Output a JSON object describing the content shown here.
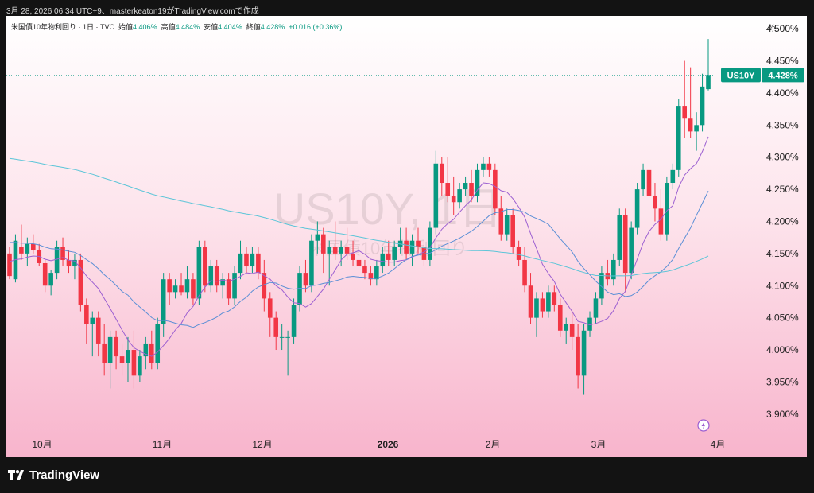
{
  "caption": "3月 28, 2026 06:34 UTC+9、masterkeaton19がTradingView.comで作成",
  "legend": {
    "name": "米国債10年物利回り · 1日 · TVC",
    "open_label": "始値",
    "open": "4.406%",
    "high_label": "高値",
    "high": "4.484%",
    "low_label": "安値",
    "low": "4.404%",
    "close_label": "終値",
    "close": "4.428%",
    "change": "+0.016 (+0.36%)"
  },
  "percent_unit": "%",
  "watermark": {
    "symbol": "US10Y, 1日",
    "name": "米国債10年物利回り"
  },
  "price_tag": {
    "symbol": "US10Y",
    "value": "4.428%"
  },
  "brand": "TradingView",
  "colors": {
    "up": "#089981",
    "down": "#f23645",
    "ma_fast": "#9c5fd1",
    "ma_mid": "#5b8fd6",
    "ma_slow": "#5cc5d8"
  },
  "chart_data": {
    "type": "candlestick",
    "y_ticks": [
      "4.500%",
      "4.450%",
      "4.400%",
      "4.350%",
      "4.300%",
      "4.250%",
      "4.200%",
      "4.150%",
      "4.100%",
      "4.050%",
      "4.000%",
      "3.950%",
      "3.900%"
    ],
    "ylim": [
      3.875,
      4.52
    ],
    "x_ticks": [
      "10月",
      "11月",
      "12月",
      "2026",
      "2月",
      "3月",
      "4月"
    ],
    "candles": [
      [
        4.15,
        4.16,
        4.11,
        4.115
      ],
      [
        4.11,
        4.18,
        4.105,
        4.17
      ],
      [
        4.16,
        4.195,
        4.14,
        4.15
      ],
      [
        4.15,
        4.175,
        4.13,
        4.165
      ],
      [
        4.165,
        4.18,
        4.15,
        4.155
      ],
      [
        4.155,
        4.165,
        4.13,
        4.135
      ],
      [
        4.135,
        4.14,
        4.09,
        4.1
      ],
      [
        4.1,
        4.125,
        4.085,
        4.12
      ],
      [
        4.12,
        4.17,
        4.11,
        4.16
      ],
      [
        4.16,
        4.175,
        4.13,
        4.14
      ],
      [
        4.14,
        4.155,
        4.12,
        4.13
      ],
      [
        4.13,
        4.15,
        4.11,
        4.14
      ],
      [
        4.14,
        4.15,
        4.06,
        4.07
      ],
      [
        4.07,
        4.08,
        4.01,
        4.04
      ],
      [
        4.04,
        4.06,
        3.99,
        4.05
      ],
      [
        4.05,
        4.06,
        3.99,
        4.01
      ],
      [
        4.01,
        4.04,
        3.96,
        3.98
      ],
      [
        3.98,
        4.03,
        3.94,
        4.02
      ],
      [
        4.02,
        4.03,
        3.97,
        3.99
      ],
      [
        3.99,
        4.01,
        3.96,
        3.98
      ],
      [
        3.98,
        4.02,
        3.95,
        4.0
      ],
      [
        4.0,
        4.03,
        3.94,
        3.96
      ],
      [
        3.96,
        4.0,
        3.95,
        3.99
      ],
      [
        3.99,
        4.02,
        3.97,
        4.01
      ],
      [
        4.01,
        4.03,
        3.97,
        3.98
      ],
      [
        3.98,
        4.05,
        3.97,
        4.04
      ],
      [
        4.04,
        4.12,
        4.02,
        4.11
      ],
      [
        4.11,
        4.12,
        4.07,
        4.09
      ],
      [
        4.09,
        4.11,
        4.08,
        4.1
      ],
      [
        4.1,
        4.12,
        4.085,
        4.09
      ],
      [
        4.09,
        4.13,
        4.08,
        4.11
      ],
      [
        4.11,
        4.12,
        4.07,
        4.08
      ],
      [
        4.08,
        4.17,
        4.07,
        4.16
      ],
      [
        4.16,
        4.17,
        4.09,
        4.1
      ],
      [
        4.1,
        4.14,
        4.09,
        4.13
      ],
      [
        4.13,
        4.14,
        4.09,
        4.1
      ],
      [
        4.1,
        4.12,
        4.08,
        4.11
      ],
      [
        4.11,
        4.12,
        4.07,
        4.08
      ],
      [
        4.08,
        4.13,
        4.07,
        4.12
      ],
      [
        4.12,
        4.17,
        4.11,
        4.15
      ],
      [
        4.15,
        4.16,
        4.12,
        4.13
      ],
      [
        4.13,
        4.16,
        4.12,
        4.15
      ],
      [
        4.15,
        4.16,
        4.11,
        4.12
      ],
      [
        4.12,
        4.14,
        4.06,
        4.08
      ],
      [
        4.08,
        4.09,
        4.02,
        4.05
      ],
      [
        4.05,
        4.06,
        4.0,
        4.02
      ],
      [
        4.02,
        4.04,
        4.0,
        4.02
      ],
      [
        4.02,
        4.03,
        3.96,
        4.02
      ],
      [
        4.02,
        4.08,
        4.01,
        4.07
      ],
      [
        4.07,
        4.13,
        4.06,
        4.12
      ],
      [
        4.12,
        4.14,
        4.09,
        4.1
      ],
      [
        4.1,
        4.18,
        4.09,
        4.17
      ],
      [
        4.17,
        4.2,
        4.15,
        4.18
      ],
      [
        4.18,
        4.19,
        4.12,
        4.15
      ],
      [
        4.15,
        4.17,
        4.1,
        4.16
      ],
      [
        4.16,
        4.2,
        4.14,
        4.15
      ],
      [
        4.15,
        4.17,
        4.13,
        4.16
      ],
      [
        4.16,
        4.19,
        4.14,
        4.15
      ],
      [
        4.15,
        4.17,
        4.13,
        4.14
      ],
      [
        4.14,
        4.16,
        4.12,
        4.13
      ],
      [
        4.13,
        4.14,
        4.11,
        4.12
      ],
      [
        4.12,
        4.13,
        4.1,
        4.11
      ],
      [
        4.11,
        4.14,
        4.1,
        4.13
      ],
      [
        4.13,
        4.16,
        4.12,
        4.15
      ],
      [
        4.15,
        4.17,
        4.13,
        4.14
      ],
      [
        4.14,
        4.17,
        4.13,
        4.16
      ],
      [
        4.16,
        4.19,
        4.15,
        4.17
      ],
      [
        4.17,
        4.19,
        4.14,
        4.15
      ],
      [
        4.15,
        4.18,
        4.13,
        4.17
      ],
      [
        4.17,
        4.19,
        4.15,
        4.16
      ],
      [
        4.16,
        4.17,
        4.13,
        4.14
      ],
      [
        4.14,
        4.2,
        4.13,
        4.19
      ],
      [
        4.19,
        4.31,
        4.18,
        4.29
      ],
      [
        4.29,
        4.3,
        4.24,
        4.26
      ],
      [
        4.26,
        4.3,
        4.23,
        4.24
      ],
      [
        4.24,
        4.27,
        4.21,
        4.23
      ],
      [
        4.23,
        4.26,
        4.22,
        4.25
      ],
      [
        4.25,
        4.27,
        4.24,
        4.26
      ],
      [
        4.26,
        4.28,
        4.23,
        4.24
      ],
      [
        4.24,
        4.29,
        4.23,
        4.28
      ],
      [
        4.28,
        4.3,
        4.27,
        4.29
      ],
      [
        4.29,
        4.3,
        4.27,
        4.28
      ],
      [
        4.28,
        4.29,
        4.21,
        4.22
      ],
      [
        4.22,
        4.24,
        4.17,
        4.18
      ],
      [
        4.18,
        4.22,
        4.17,
        4.21
      ],
      [
        4.21,
        4.22,
        4.15,
        4.16
      ],
      [
        4.16,
        4.17,
        4.13,
        4.14
      ],
      [
        4.14,
        4.16,
        4.09,
        4.1
      ],
      [
        4.1,
        4.12,
        4.04,
        4.05
      ],
      [
        4.05,
        4.09,
        4.02,
        4.08
      ],
      [
        4.08,
        4.09,
        4.05,
        4.06
      ],
      [
        4.06,
        4.1,
        4.05,
        4.09
      ],
      [
        4.09,
        4.1,
        4.06,
        4.07
      ],
      [
        4.07,
        4.08,
        4.02,
        4.03
      ],
      [
        4.03,
        4.05,
        4.01,
        4.04
      ],
      [
        4.04,
        4.06,
        4.0,
        4.02
      ],
      [
        4.02,
        4.04,
        3.94,
        3.96
      ],
      [
        3.96,
        4.04,
        3.93,
        4.03
      ],
      [
        4.03,
        4.06,
        4.02,
        4.05
      ],
      [
        4.05,
        4.09,
        4.04,
        4.08
      ],
      [
        4.08,
        4.13,
        4.07,
        4.12
      ],
      [
        4.12,
        4.14,
        4.1,
        4.11
      ],
      [
        4.11,
        4.15,
        4.1,
        4.14
      ],
      [
        4.14,
        4.22,
        4.13,
        4.21
      ],
      [
        4.21,
        4.22,
        4.09,
        4.12
      ],
      [
        4.12,
        4.2,
        4.11,
        4.19
      ],
      [
        4.19,
        4.26,
        4.18,
        4.25
      ],
      [
        4.25,
        4.29,
        4.24,
        4.28
      ],
      [
        4.28,
        4.29,
        4.23,
        4.24
      ],
      [
        4.24,
        4.26,
        4.2,
        4.22
      ],
      [
        4.22,
        4.25,
        4.17,
        4.18
      ],
      [
        4.18,
        4.27,
        4.17,
        4.26
      ],
      [
        4.26,
        4.29,
        4.25,
        4.28
      ],
      [
        4.28,
        4.39,
        4.27,
        4.38
      ],
      [
        4.38,
        4.45,
        4.33,
        4.36
      ],
      [
        4.36,
        4.44,
        4.33,
        4.34
      ],
      [
        4.34,
        4.37,
        4.31,
        4.35
      ],
      [
        4.35,
        4.43,
        4.34,
        4.41
      ],
      [
        4.406,
        4.484,
        4.404,
        4.428
      ]
    ]
  }
}
